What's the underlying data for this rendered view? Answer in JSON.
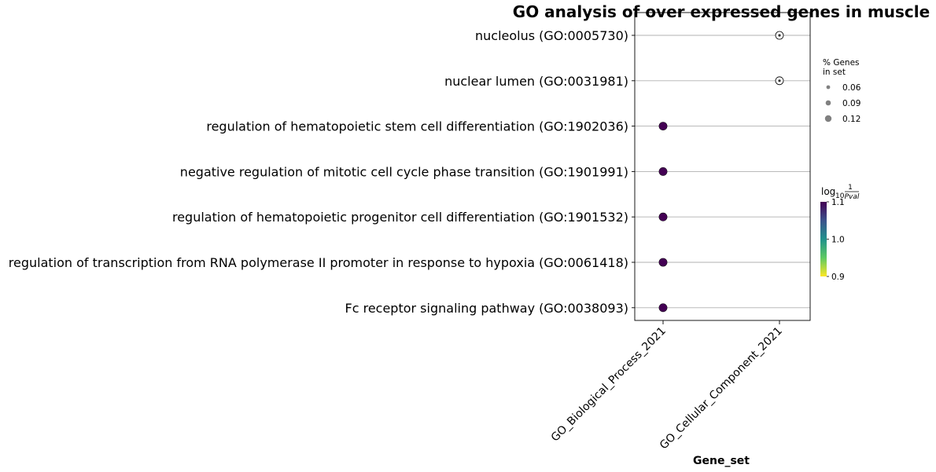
{
  "chart_data": {
    "type": "scatter",
    "title": "GO analysis of over expressed genes in muscle",
    "xlabel": "Gene_set",
    "categories": [
      "GO_Biological_Process_2021",
      "GO_Cellular_Component_2021"
    ],
    "terms": [
      "nucleolus (GO:0005730)",
      "nuclear lumen (GO:0031981)",
      "regulation of hematopoietic stem cell differentiation (GO:1902036)",
      "negative regulation of mitotic cell cycle phase transition (GO:1901991)",
      "regulation of hematopoietic progenitor cell differentiation (GO:1901532)",
      "regulation of transcription from RNA polymerase II promoter in response to hypoxia (GO:0061418)",
      "Fc receptor signaling pathway (GO:0038093)"
    ],
    "points": [
      {
        "term": "nucleolus (GO:0005730)",
        "gene_set": "GO_Cellular_Component_2021",
        "pct_genes": 0.04,
        "log10_inv_pval": 0.5
      },
      {
        "term": "nuclear lumen (GO:0031981)",
        "gene_set": "GO_Cellular_Component_2021",
        "pct_genes": 0.04,
        "log10_inv_pval": 0.5
      },
      {
        "term": "regulation of hematopoietic stem cell differentiation (GO:1902036)",
        "gene_set": "GO_Biological_Process_2021",
        "pct_genes": 0.1,
        "log10_inv_pval": 1.1
      },
      {
        "term": "negative regulation of mitotic cell cycle phase transition (GO:1901991)",
        "gene_set": "GO_Biological_Process_2021",
        "pct_genes": 0.1,
        "log10_inv_pval": 1.1
      },
      {
        "term": "regulation of hematopoietic progenitor cell differentiation (GO:1901532)",
        "gene_set": "GO_Biological_Process_2021",
        "pct_genes": 0.1,
        "log10_inv_pval": 1.1
      },
      {
        "term": "regulation of transcription from RNA polymerase II promoter in response to hypoxia (GO:0061418)",
        "gene_set": "GO_Biological_Process_2021",
        "pct_genes": 0.1,
        "log10_inv_pval": 1.1
      },
      {
        "term": "Fc receptor signaling pathway (GO:0038093)",
        "gene_set": "GO_Biological_Process_2021",
        "pct_genes": 0.1,
        "log10_inv_pval": 1.1
      }
    ],
    "size_legend": {
      "title_line1": "% Genes",
      "title_line2": "in set",
      "values": [
        "0.06",
        "0.09",
        "0.12"
      ]
    },
    "colorbar": {
      "title_base": "log",
      "title_sub": "10",
      "title_num": "1",
      "title_den": "Pval",
      "ticks": [
        "1.1",
        "1.0",
        "0.9"
      ],
      "range": [
        0.9,
        1.1
      ],
      "colormap": "viridis_r"
    },
    "grid": true,
    "legend_position": "right"
  },
  "colors": {
    "grid": "#b0b0b0",
    "axis": "#000000",
    "marker_edge": "#000000",
    "legend_marker": "#808080"
  }
}
